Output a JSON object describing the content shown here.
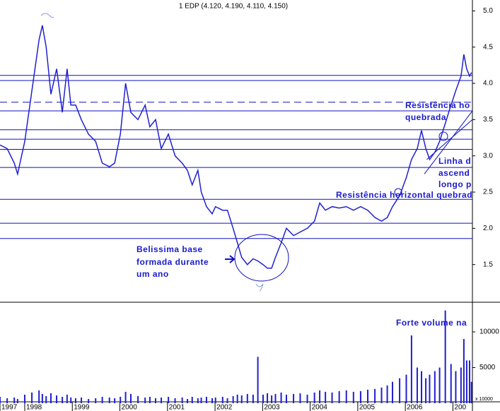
{
  "chart_data": {
    "type": "line",
    "title": "1 EDP (4.120, 4.190, 4.110, 4.150)",
    "x": [
      1997.48,
      1997.63,
      1997.78,
      1997.85,
      1998.0,
      1998.15,
      1998.3,
      1998.37,
      1998.45,
      1998.55,
      1998.67,
      1998.79,
      1998.89,
      1998.97,
      1999.07,
      1999.19,
      1999.34,
      1999.49,
      1999.63,
      1999.78,
      1999.89,
      2000.01,
      2000.12,
      2000.23,
      2000.38,
      2000.53,
      2000.63,
      2000.75,
      2000.87,
      2001.02,
      2001.16,
      2001.31,
      2001.42,
      2001.52,
      2001.64,
      2001.71,
      2001.82,
      2001.94,
      2002.01,
      2002.16,
      2002.26,
      2002.38,
      2002.47,
      2002.56,
      2002.68,
      2002.8,
      2002.9,
      2003.01,
      2003.1,
      2003.19,
      2003.27,
      2003.39,
      2003.5,
      2003.65,
      2003.79,
      2003.94,
      2004.09,
      2004.2,
      2004.32,
      2004.46,
      2004.61,
      2004.76,
      2004.91,
      2005.06,
      2005.21,
      2005.36,
      2005.5,
      2005.62,
      2005.73,
      2005.88,
      2006.02,
      2006.13,
      2006.25,
      2006.34,
      2006.43,
      2006.51,
      2006.62,
      2006.72,
      2006.84,
      2006.96,
      2007.06,
      2007.17,
      2007.23,
      2007.29,
      2007.35,
      2007.39
    ],
    "series": [
      {
        "color": "#2020d0",
        "values": [
          3.15,
          3.1,
          2.9,
          2.75,
          3.2,
          3.9,
          4.6,
          4.8,
          4.5,
          3.85,
          4.2,
          3.6,
          4.2,
          3.7,
          3.7,
          3.5,
          3.3,
          3.2,
          2.9,
          2.85,
          2.9,
          3.3,
          4.0,
          3.6,
          3.5,
          3.7,
          3.4,
          3.5,
          3.1,
          3.3,
          3.0,
          2.9,
          2.8,
          2.6,
          2.8,
          2.5,
          2.3,
          2.2,
          2.3,
          2.25,
          2.25,
          2.0,
          1.8,
          1.6,
          1.5,
          1.58,
          1.55,
          1.5,
          1.45,
          1.45,
          1.6,
          1.8,
          2.0,
          1.9,
          1.95,
          2.0,
          2.1,
          2.35,
          2.25,
          2.3,
          2.28,
          2.3,
          2.25,
          2.3,
          2.25,
          2.15,
          2.1,
          2.15,
          2.3,
          2.45,
          2.7,
          2.95,
          3.1,
          3.35,
          3.1,
          2.95,
          3.05,
          3.2,
          3.45,
          3.7,
          3.9,
          4.1,
          4.4,
          4.2,
          4.1,
          4.15
        ]
      },
      {
        "type": "bar",
        "axis": "y2",
        "color": "#2020d0",
        "values": [
          900,
          700,
          800,
          600,
          1200,
          1500,
          1800,
          1300,
          1000,
          1400,
          1100,
          900,
          1200,
          800,
          700,
          800,
          600,
          700,
          900,
          800,
          700,
          900,
          1600,
          1300,
          1000,
          800,
          900,
          700,
          800,
          900,
          700,
          800,
          600,
          900,
          700,
          800,
          900,
          700,
          800,
          900,
          700,
          1000,
          1200,
          1100,
          1300,
          1200,
          6500,
          1200,
          1400,
          1100,
          1300,
          1500,
          1200,
          1300,
          1400,
          1200,
          1500,
          1800,
          1600,
          1500,
          1700,
          1800,
          1600,
          1700,
          1900,
          2000,
          2200,
          2500,
          3000,
          3500,
          4000,
          9500,
          5000,
          4500,
          3500,
          4000,
          4500,
          5000,
          13000,
          5500,
          4500,
          5000,
          9000,
          6000,
          6000,
          3000
        ]
      }
    ],
    "xlim": [
      1997.48,
      2007.41
    ],
    "xticks": [
      {
        "value": 1997.48,
        "label": "1997"
      },
      1998,
      1999,
      2000,
      2001,
      2002,
      2003,
      2004,
      2005,
      2006,
      {
        "value": 2007,
        "label": "200"
      }
    ],
    "ylim": [
      1.0,
      5.15
    ],
    "yticks": [
      {
        "value": 1.5,
        "label": "1.5"
      },
      {
        "value": 2,
        "label": "2.0"
      },
      {
        "value": 2.5,
        "label": "2.5"
      },
      {
        "value": 3,
        "label": "3.0"
      },
      {
        "value": 3.5,
        "label": "3.5"
      },
      {
        "value": 4,
        "label": "4.0"
      },
      {
        "value": 4.5,
        "label": "4.5"
      },
      {
        "value": 5,
        "label": "5.0"
      }
    ],
    "y2lim": [
      0,
      13560
    ],
    "y2ticks": [
      5000,
      10000
    ],
    "y2_unit_label": "x 10000",
    "levels": [
      4.11,
      4.04,
      3.62,
      3.36,
      3.23,
      3.09,
      2.84,
      2.4,
      2.07,
      1.86
    ],
    "dashed_level": 3.74,
    "level_color": "#1010c0",
    "trendlines": [
      {
        "x": [
          2006.4,
          2007.41
        ],
        "y": [
          2.75,
          3.62
        ]
      },
      {
        "x": [
          2006.45,
          2007.41
        ],
        "y": [
          2.95,
          3.5
        ]
      }
    ],
    "annotations": [
      "Belissima base",
      "formada durante",
      "um ano",
      "Resistência ho",
      "quebrada",
      "Linha d",
      "ascend",
      "longo p",
      "Resistência horizontal quebrad",
      "Forte volume na"
    ]
  }
}
